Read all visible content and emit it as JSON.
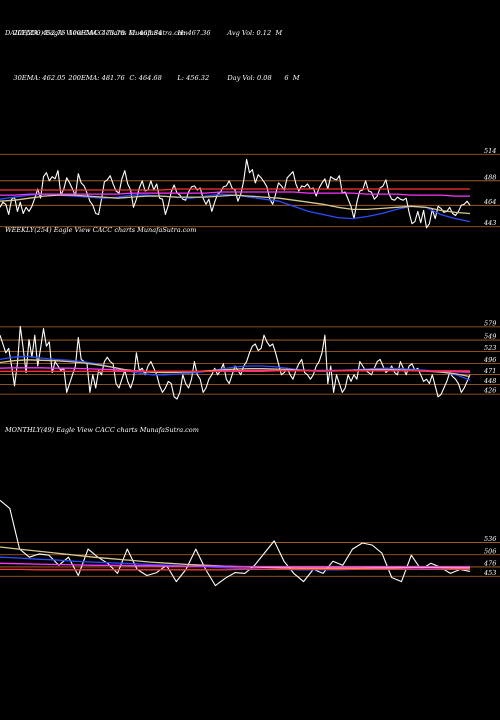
{
  "header": {
    "row1": [
      "20EMA: 452.75",
      "100EMA: 473.78",
      "O: 463.84",
      "H: 467.36",
      "Avg Vol: 0.12  M"
    ],
    "row2": [
      "30EMA: 462.05",
      "200EMA: 481.76",
      "C: 464.68",
      "L: 456.32",
      "Day Vol: 0.08",
      "6  M"
    ]
  },
  "colors": {
    "background": "#000000",
    "price": "#ffffff",
    "ema_blue": "#2a4cff",
    "ema_magenta": "#ff33ff",
    "ema_red": "#ff3333",
    "ema_tan": "#d8c890",
    "level_line": "#b86a2a"
  },
  "chart_data": [
    {
      "type": "line",
      "title": "DAILY(250) Eagle  View  CACC charts MunafaSutra.com",
      "y_ticks": [
        514,
        488,
        464,
        443
      ],
      "y_scale": [
        430,
        528
      ],
      "series": [
        {
          "role": "price",
          "values": [
            462,
            467,
            465,
            455,
            470,
            472,
            458,
            467,
            456,
            462,
            458,
            463,
            471,
            480,
            471,
            492,
            496,
            488,
            492,
            490,
            498,
            474,
            480,
            491,
            486,
            480,
            473,
            495,
            486,
            483,
            476,
            468,
            464,
            456,
            455,
            470,
            487,
            489,
            493,
            485,
            478,
            476,
            490,
            498,
            485,
            479,
            462,
            470,
            481,
            488,
            478,
            479,
            488,
            479,
            485,
            471,
            470,
            455,
            464,
            477,
            484,
            476,
            474,
            470,
            469,
            477,
            482,
            483,
            479,
            481,
            471,
            465,
            470,
            458,
            467,
            475,
            477,
            482,
            483,
            488,
            481,
            479,
            468,
            475,
            488,
            509,
            496,
            499,
            486,
            494,
            491,
            487,
            482,
            470,
            465,
            475,
            486,
            483,
            479,
            491,
            494,
            497,
            485,
            478,
            483,
            482,
            485,
            480,
            481,
            473,
            481,
            486,
            490,
            480,
            492,
            490,
            489,
            493,
            476,
            477,
            470,
            463,
            451,
            467,
            478,
            479,
            488,
            478,
            477,
            470,
            473,
            481,
            483,
            489,
            476,
            470,
            469,
            472,
            470,
            469,
            471,
            457,
            446,
            448,
            458,
            447,
            459,
            442,
            446,
            460,
            451,
            463,
            461,
            457,
            458,
            462,
            456,
            454,
            458,
            464,
            465,
            468,
            464
          ]
        },
        {
          "role": "ema",
          "color": "ema_blue",
          "values": [
            470,
            472,
            474,
            475,
            474,
            473,
            472,
            471,
            472,
            474,
            474,
            473,
            472,
            471,
            473,
            475,
            474,
            472,
            470,
            468,
            463,
            458,
            455,
            452,
            451,
            453,
            456,
            460,
            463,
            462,
            455,
            451,
            448
          ]
        },
        {
          "role": "ema",
          "color": "ema_tan",
          "values": [
            468,
            469,
            471,
            473,
            474,
            474,
            473,
            472,
            471,
            472,
            473,
            473,
            472,
            472,
            472,
            473,
            474,
            473,
            472,
            471,
            469,
            467,
            465,
            462,
            460,
            460,
            461,
            462,
            463,
            462,
            459,
            457,
            456
          ]
        },
        {
          "role": "ema",
          "color": "ema_magenta",
          "values": [
            474,
            474,
            475,
            475,
            475,
            475,
            475,
            475,
            475,
            476,
            476,
            476,
            476,
            476,
            476,
            477,
            477,
            477,
            477,
            477,
            477,
            476,
            476,
            476,
            476,
            475,
            475,
            475,
            474,
            474,
            474,
            473,
            473
          ]
        },
        {
          "role": "ema",
          "color": "ema_red",
          "values": [
            479,
            479,
            479,
            479,
            479,
            479,
            479,
            479,
            479,
            479,
            479,
            479,
            480,
            480,
            480,
            480,
            480,
            480,
            480,
            480,
            480,
            480,
            480,
            480,
            480,
            480,
            480,
            480,
            480,
            480,
            480,
            480,
            480
          ]
        }
      ]
    },
    {
      "type": "line",
      "title": "WEEKLY(254) Eagle  View  CACC charts MunafaSutra.com",
      "y_ticks": [
        579,
        549,
        523,
        496,
        471,
        448,
        426
      ],
      "y_scale": [
        390,
        640
      ],
      "series": [
        {
          "role": "price",
          "values": [
            560,
            540,
            520,
            530,
            490,
            445,
            495,
            580,
            530,
            475,
            550,
            510,
            560,
            490,
            530,
            575,
            535,
            545,
            475,
            500,
            490,
            480,
            485,
            430,
            450,
            470,
            490,
            555,
            505,
            500,
            495,
            430,
            470,
            440,
            480,
            470,
            500,
            510,
            500,
            495,
            450,
            440,
            460,
            480,
            455,
            440,
            460,
            520,
            480,
            485,
            470,
            490,
            500,
            485,
            470,
            445,
            430,
            440,
            455,
            450,
            420,
            415,
            430,
            470,
            450,
            440,
            460,
            500,
            470,
            460,
            430,
            440,
            460,
            470,
            485,
            470,
            480,
            495,
            460,
            450,
            470,
            490,
            480,
            470,
            490,
            500,
            520,
            535,
            540,
            525,
            530,
            560,
            545,
            535,
            540,
            520,
            495,
            470,
            475,
            485,
            470,
            460,
            480,
            495,
            505,
            475,
            470,
            460,
            470,
            490,
            500,
            520,
            560,
            450,
            490,
            430,
            470,
            450,
            430,
            440,
            470,
            455,
            470,
            460,
            500,
            490,
            480,
            475,
            470,
            485,
            500,
            505,
            490,
            475,
            480,
            490,
            475,
            470,
            500,
            485,
            470,
            490,
            495,
            480,
            485,
            470,
            455,
            460,
            450,
            470,
            445,
            420,
            425,
            440,
            455,
            475,
            466,
            460,
            450,
            430,
            440,
            455,
            470
          ]
        },
        {
          "role": "ema",
          "color": "ema_blue",
          "values": [
            505,
            510,
            512,
            508,
            505,
            503,
            500,
            495,
            488,
            480,
            474,
            470,
            470,
            472,
            474,
            478,
            483,
            488,
            490,
            490,
            488,
            484,
            480,
            478,
            478,
            480,
            482,
            484,
            485,
            484,
            482,
            480,
            476,
            470,
            458
          ]
        },
        {
          "role": "ema",
          "color": "ema_tan",
          "values": [
            498,
            502,
            504,
            503,
            502,
            500,
            497,
            493,
            488,
            482,
            478,
            476,
            475,
            476,
            477,
            479,
            481,
            483,
            484,
            484,
            483,
            482,
            480,
            479,
            479,
            480,
            481,
            482,
            482,
            481,
            480,
            478,
            476,
            472,
            466
          ]
        },
        {
          "role": "ema",
          "color": "ema_magenta",
          "values": [
            485,
            486,
            486,
            486,
            485,
            485,
            484,
            483,
            482,
            480,
            479,
            478,
            478,
            478,
            478,
            478,
            479,
            479,
            480,
            480,
            480,
            480,
            480,
            480,
            480,
            480,
            480,
            480,
            480,
            479,
            479,
            478,
            478,
            477,
            476
          ]
        },
        {
          "role": "ema",
          "color": "ema_red",
          "values": [
            478,
            478,
            478,
            478,
            478,
            478,
            478,
            478,
            478,
            478,
            478,
            478,
            478,
            478,
            478,
            478,
            478,
            478,
            478,
            478,
            479,
            479,
            479,
            479,
            479,
            479,
            479,
            479,
            479,
            479,
            479,
            479,
            479,
            479,
            479
          ]
        }
      ]
    },
    {
      "type": "line",
      "title": "MONTHLY(49) Eagle  View  CACC charts MunafaSutra.com",
      "y_ticks": [
        536,
        506,
        476,
        453
      ],
      "y_scale": [
        370,
        690
      ],
      "series": [
        {
          "role": "price",
          "values": [
            640,
            620,
            520,
            500,
            508,
            505,
            480,
            500,
            455,
            520,
            500,
            485,
            460,
            520,
            470,
            455,
            462,
            480,
            440,
            470,
            520,
            470,
            430,
            448,
            462,
            460,
            480,
            510,
            540,
            490,
            460,
            440,
            470,
            460,
            490,
            480,
            520,
            535,
            530,
            510,
            450,
            440,
            505,
            470,
            485,
            475,
            460,
            470,
            465
          ]
        },
        {
          "role": "ema",
          "color": "ema_blue",
          "values": [
            500,
            498,
            495,
            493,
            490,
            488,
            486,
            484,
            482,
            480,
            478,
            476,
            474,
            472,
            471,
            470,
            469,
            469,
            469,
            470,
            471,
            472,
            473,
            473,
            473,
            472
          ]
        },
        {
          "role": "ema",
          "color": "ema_tan",
          "values": [
            525,
            520,
            515,
            510,
            505,
            500,
            496,
            492,
            488,
            485,
            482,
            480,
            478,
            476,
            475,
            474,
            473,
            473,
            473,
            473,
            474,
            474,
            475,
            475,
            474,
            474
          ]
        },
        {
          "role": "ema",
          "color": "ema_magenta",
          "values": [
            485,
            484,
            483,
            482,
            481,
            480,
            480,
            479,
            479,
            478,
            478,
            478,
            478,
            477,
            477,
            477,
            477,
            477,
            477,
            477,
            477,
            477,
            477,
            477,
            477,
            477
          ]
        },
        {
          "role": "ema",
          "color": "ema_red",
          "values": [
            470,
            470,
            469,
            469,
            469,
            469,
            469,
            469,
            469,
            469,
            469,
            469,
            469,
            470,
            470,
            470,
            470,
            470,
            470,
            470,
            470,
            470,
            470,
            470,
            470,
            470
          ]
        }
      ]
    }
  ]
}
